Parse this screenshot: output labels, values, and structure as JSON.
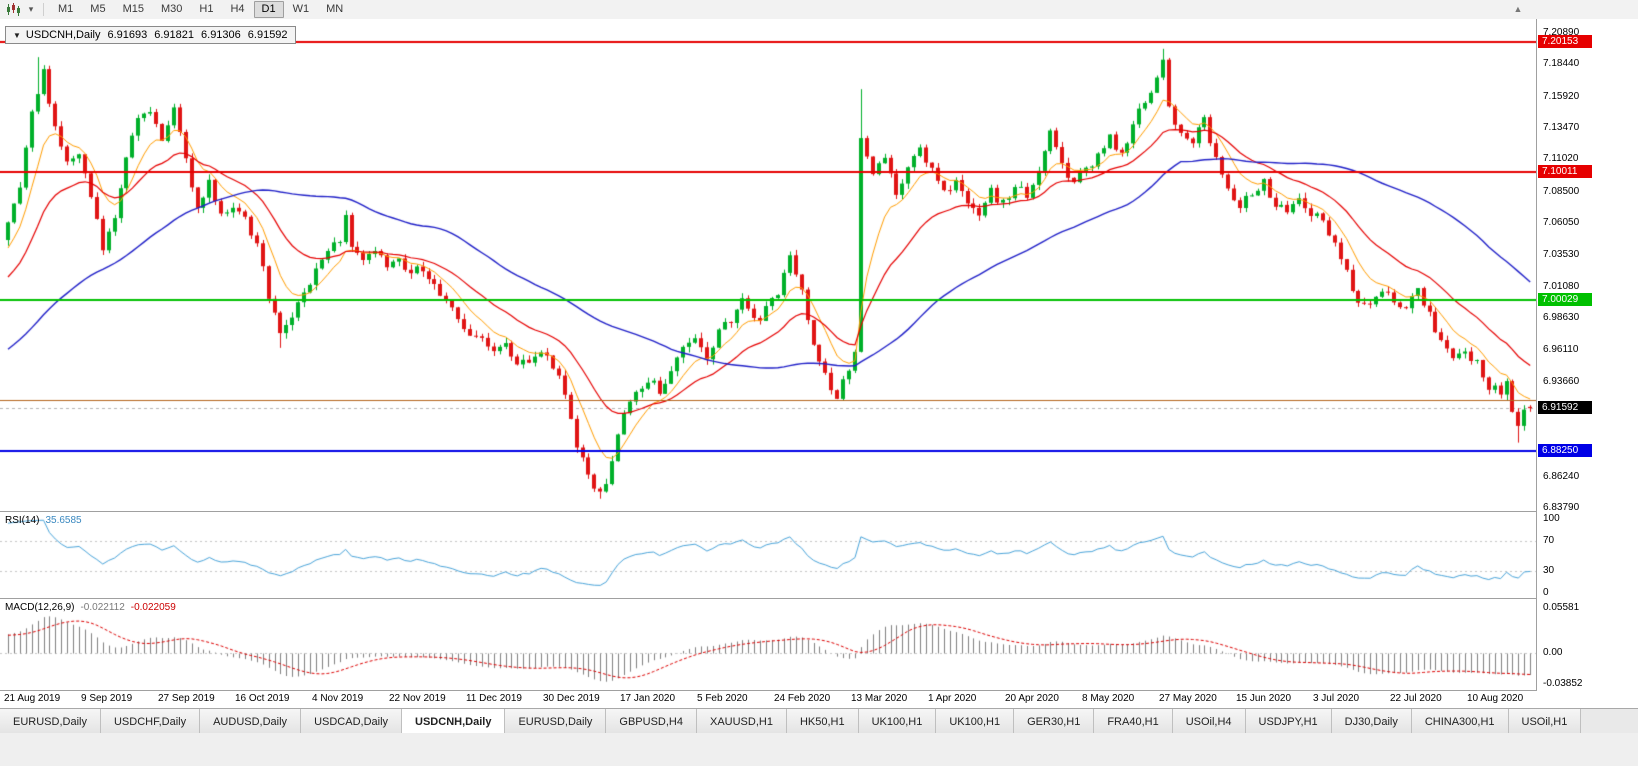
{
  "toolbar": {
    "timeframes": [
      "M1",
      "M5",
      "M15",
      "M30",
      "H1",
      "H4",
      "D1",
      "W1",
      "MN"
    ],
    "active_timeframe": "D1",
    "chevron_glyph": "▾",
    "scroll_glyph": "▲"
  },
  "chart": {
    "title": "USDCNH,Daily",
    "collapse_glyph": "▼",
    "ohlc": {
      "o": "6.91693",
      "h": "6.91821",
      "l": "6.91306",
      "c": "6.91592"
    }
  },
  "axis": {
    "price_ticks": [
      "7.20890",
      "7.18440",
      "7.15920",
      "7.13470",
      "7.11020",
      "7.08500",
      "7.06050",
      "7.03530",
      "7.01080",
      "6.98630",
      "6.96110",
      "6.93660",
      "6.86240",
      "6.83790"
    ],
    "dates": [
      "21 Aug 2019",
      "9 Sep 2019",
      "27 Sep 2019",
      "16 Oct 2019",
      "4 Nov 2019",
      "22 Nov 2019",
      "11 Dec 2019",
      "30 Dec 2019",
      "17 Jan 2020",
      "5 Feb 2020",
      "24 Feb 2020",
      "13 Mar 2020",
      "1 Apr 2020",
      "20 Apr 2020",
      "8 May 2020",
      "27 May 2020",
      "15 Jun 2020",
      "3 Jul 2020",
      "22 Jul 2020",
      "10 Aug 2020"
    ]
  },
  "rsi": {
    "name": "RSI(14)",
    "value": "35.6585",
    "axis": [
      "100",
      "70",
      "30",
      "0"
    ]
  },
  "macd": {
    "name": "MACD(12,26,9)",
    "value_main": "-0.022112",
    "value_signal": "-0.022059",
    "axis": [
      "0.05581",
      "0.00",
      "-0.03852"
    ]
  },
  "tabs": {
    "items": [
      "EURUSD,Daily",
      "USDCHF,Daily",
      "AUDUSD,Daily",
      "USDCAD,Daily",
      "USDCNH,Daily",
      "EURUSD,Daily",
      "GBPUSD,H4",
      "XAUUSD,H1",
      "HK50,H1",
      "UK100,H1",
      "UK100,H1",
      "GER30,H1",
      "FRA40,H1",
      "USOil,H4",
      "USDJPY,H1",
      "DJ30,Daily",
      "CHINA300,H1",
      "USOil,H1"
    ],
    "active_index": 4
  },
  "colors": {
    "bull": "#00b02a",
    "bear": "#e01414",
    "rsi": "#49a4da",
    "macd_hist": "#808080",
    "macd_signal": "#dd0000",
    "current_price_badge": "#000000"
  },
  "chart_data": {
    "type": "candlestick",
    "symbol": "USDCNH",
    "timeframe": "Daily",
    "candle_count": 258,
    "x_label_every": 13,
    "price_axis_range": [
      6.8356,
      7.2198
    ],
    "last_candle": {
      "o": 6.91693,
      "h": 6.91821,
      "l": 6.91306,
      "c": 6.91592
    },
    "current_price": 6.91592,
    "close_path": [
      [
        0,
        7.06
      ],
      [
        2,
        7.085
      ],
      [
        4,
        7.148
      ],
      [
        6,
        7.178
      ],
      [
        8,
        7.135
      ],
      [
        10,
        7.105
      ],
      [
        12,
        7.118
      ],
      [
        14,
        7.08
      ],
      [
        16,
        7.04
      ],
      [
        18,
        7.065
      ],
      [
        20,
        7.11
      ],
      [
        22,
        7.14
      ],
      [
        24,
        7.15
      ],
      [
        26,
        7.128
      ],
      [
        28,
        7.148
      ],
      [
        30,
        7.108
      ],
      [
        32,
        7.075
      ],
      [
        34,
        7.09
      ],
      [
        36,
        7.068
      ],
      [
        38,
        7.075
      ],
      [
        40,
        7.062
      ],
      [
        42,
        7.045
      ],
      [
        44,
        7.0
      ],
      [
        46,
        6.975
      ],
      [
        48,
        6.99
      ],
      [
        50,
        7.008
      ],
      [
        52,
        7.022
      ],
      [
        54,
        7.035
      ],
      [
        56,
        7.048
      ],
      [
        57,
        7.068
      ],
      [
        58,
        7.04
      ],
      [
        60,
        7.03
      ],
      [
        62,
        7.038
      ],
      [
        64,
        7.026
      ],
      [
        66,
        7.035
      ],
      [
        68,
        7.02
      ],
      [
        70,
        7.026
      ],
      [
        72,
        7.014
      ],
      [
        74,
        7.0
      ],
      [
        76,
        6.986
      ],
      [
        78,
        6.975
      ],
      [
        80,
        6.97
      ],
      [
        82,
        6.958
      ],
      [
        84,
        6.966
      ],
      [
        86,
        6.954
      ],
      [
        88,
        6.948
      ],
      [
        90,
        6.958
      ],
      [
        92,
        6.95
      ],
      [
        94,
        6.928
      ],
      [
        96,
        6.888
      ],
      [
        98,
        6.86
      ],
      [
        100,
        6.847
      ],
      [
        101,
        6.856
      ],
      [
        103,
        6.898
      ],
      [
        104,
        6.912
      ],
      [
        106,
        6.926
      ],
      [
        108,
        6.938
      ],
      [
        110,
        6.93
      ],
      [
        112,
        6.945
      ],
      [
        114,
        6.96
      ],
      [
        116,
        6.968
      ],
      [
        118,
        6.958
      ],
      [
        120,
        6.975
      ],
      [
        122,
        6.986
      ],
      [
        124,
        6.998
      ],
      [
        126,
        6.984
      ],
      [
        128,
        6.992
      ],
      [
        130,
        7.008
      ],
      [
        132,
        7.035
      ],
      [
        134,
        7.008
      ],
      [
        136,
        6.968
      ],
      [
        138,
        6.94
      ],
      [
        140,
        6.924
      ],
      [
        142,
        6.945
      ],
      [
        143,
        6.96
      ],
      [
        144,
        7.125
      ],
      [
        146,
        7.095
      ],
      [
        148,
        7.115
      ],
      [
        150,
        7.085
      ],
      [
        152,
        7.105
      ],
      [
        154,
        7.12
      ],
      [
        156,
        7.1
      ],
      [
        158,
        7.085
      ],
      [
        160,
        7.095
      ],
      [
        162,
        7.078
      ],
      [
        164,
        7.068
      ],
      [
        166,
        7.085
      ],
      [
        168,
        7.075
      ],
      [
        170,
        7.09
      ],
      [
        172,
        7.08
      ],
      [
        174,
        7.098
      ],
      [
        176,
        7.13
      ],
      [
        178,
        7.105
      ],
      [
        180,
        7.095
      ],
      [
        182,
        7.102
      ],
      [
        184,
        7.112
      ],
      [
        186,
        7.126
      ],
      [
        188,
        7.112
      ],
      [
        190,
        7.136
      ],
      [
        192,
        7.156
      ],
      [
        194,
        7.176
      ],
      [
        195,
        7.19
      ],
      [
        196,
        7.152
      ],
      [
        198,
        7.13
      ],
      [
        200,
        7.126
      ],
      [
        202,
        7.14
      ],
      [
        204,
        7.11
      ],
      [
        206,
        7.086
      ],
      [
        208,
        7.076
      ],
      [
        210,
        7.082
      ],
      [
        212,
        7.092
      ],
      [
        214,
        7.076
      ],
      [
        216,
        7.07
      ],
      [
        218,
        7.078
      ],
      [
        220,
        7.068
      ],
      [
        222,
        7.06
      ],
      [
        224,
        7.044
      ],
      [
        226,
        7.02
      ],
      [
        228,
        7.0
      ],
      [
        230,
        6.995
      ],
      [
        232,
        7.006
      ],
      [
        234,
        7.0
      ],
      [
        236,
        6.998
      ],
      [
        238,
        7.006
      ],
      [
        240,
        6.99
      ],
      [
        242,
        6.968
      ],
      [
        244,
        6.955
      ],
      [
        246,
        6.958
      ],
      [
        248,
        6.95
      ],
      [
        250,
        6.934
      ],
      [
        252,
        6.926
      ],
      [
        253,
        6.938
      ],
      [
        254,
        6.916
      ],
      [
        255,
        6.9
      ],
      [
        256,
        6.915
      ],
      [
        257,
        6.91592
      ]
    ],
    "wick_overrides": {
      "5": {
        "h": 7.19
      },
      "46": {
        "l": 6.963
      },
      "100": {
        "l": 6.8452
      },
      "144": {
        "h": 7.165
      },
      "195": {
        "h": 7.1965
      },
      "255": {
        "l": 6.889
      }
    },
    "levels": [
      {
        "value": 7.20153,
        "color": "#e60000",
        "width": 2,
        "badge_label": "7.20153"
      },
      {
        "value": 7.10011,
        "color": "#e60000",
        "width": 2,
        "badge_label": "7.10011"
      },
      {
        "value": 7.00029,
        "color": "#00c000",
        "width": 2,
        "badge_label": "7.00029"
      },
      {
        "value": 6.9221,
        "color": "#b5651d",
        "width": 1
      },
      {
        "value": 6.8825,
        "color": "#0000e6",
        "width": 2,
        "badge_label": "6.88250"
      }
    ],
    "moving_averages": [
      {
        "period": 8,
        "type": "ema",
        "color": "#ff9d00",
        "width": 1
      },
      {
        "period": 21,
        "type": "ema",
        "color": "#e60000",
        "width": 1.2
      },
      {
        "period": 55,
        "type": "sma",
        "color": "#2020c8",
        "width": 1.4
      }
    ],
    "indicators": {
      "rsi_period": 14,
      "macd": [
        12,
        26,
        9
      ]
    },
    "prehistory": {
      "bars": 55,
      "from": 6.87,
      "to": 7.05
    },
    "render_seed": 9973
  }
}
